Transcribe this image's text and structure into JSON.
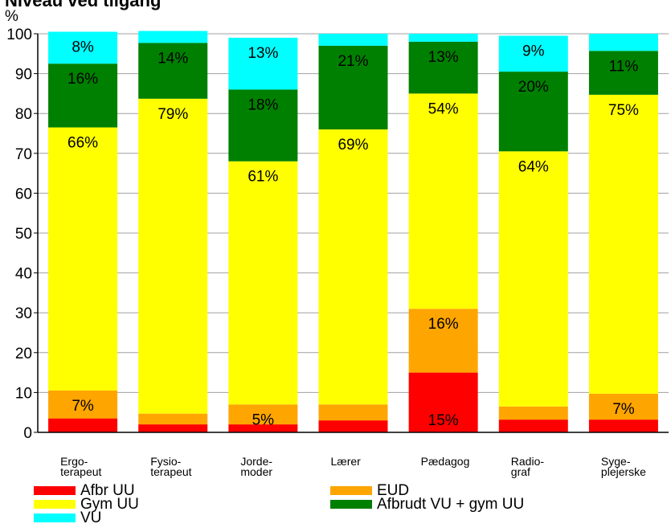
{
  "chart_data": {
    "type": "bar",
    "stacked": true,
    "title": "Niveau ved tilgang",
    "ylabel": "%",
    "ylim": [
      0,
      100
    ],
    "yticks": [
      0,
      10,
      20,
      30,
      40,
      50,
      60,
      70,
      80,
      90,
      100
    ],
    "grid": true,
    "legend_position": "bottom",
    "categories": [
      [
        "Ergo-",
        "terapeut"
      ],
      [
        "Fysio-",
        "terapeut"
      ],
      [
        "Jorde-",
        "moder"
      ],
      [
        "Lærer"
      ],
      [
        "Pædagog"
      ],
      [
        "Radio-",
        "graf"
      ],
      [
        "Syge-",
        "plejerske"
      ]
    ],
    "series": [
      {
        "name": "Afbr UU",
        "color": "#ff0000",
        "values": [
          3.5,
          2,
          2,
          3,
          15,
          3.2,
          3.2
        ],
        "labels": [
          "",
          "",
          "",
          "",
          "15%",
          "",
          ""
        ]
      },
      {
        "name": "EUD",
        "color": "#ffa500",
        "values": [
          7,
          2.7,
          5,
          4,
          16,
          3.3,
          6.5
        ],
        "labels": [
          "7%",
          "",
          "5%",
          "",
          "16%",
          "",
          "7%"
        ]
      },
      {
        "name": "Gym UU",
        "color": "#ffff00",
        "values": [
          66,
          79,
          61,
          69,
          54,
          64,
          75
        ],
        "labels": [
          "66%",
          "79%",
          "61%",
          "69%",
          "54%",
          "64%",
          "75%"
        ]
      },
      {
        "name": "Afbrudt VU + gym UU",
        "color": "#008000",
        "values": [
          16,
          14,
          18,
          21,
          13,
          20,
          11
        ],
        "labels": [
          "16%",
          "14%",
          "18%",
          "21%",
          "13%",
          "20%",
          "11%"
        ]
      },
      {
        "name": "VU",
        "color": "#00ffff",
        "values": [
          8,
          3,
          13,
          3,
          2,
          9,
          4.3
        ],
        "labels": [
          "8%",
          "",
          "13%",
          "",
          "",
          "9%",
          ""
        ]
      }
    ],
    "legend": [
      [
        "Afbr UU",
        "EUD"
      ],
      [
        "Gym UU",
        "Afbrudt VU + gym UU"
      ],
      [
        "VU"
      ]
    ],
    "legend_colors": [
      [
        "#ff0000",
        "#ffa500"
      ],
      [
        "#ffff00",
        "#008000"
      ],
      [
        "#00ffff"
      ]
    ]
  }
}
